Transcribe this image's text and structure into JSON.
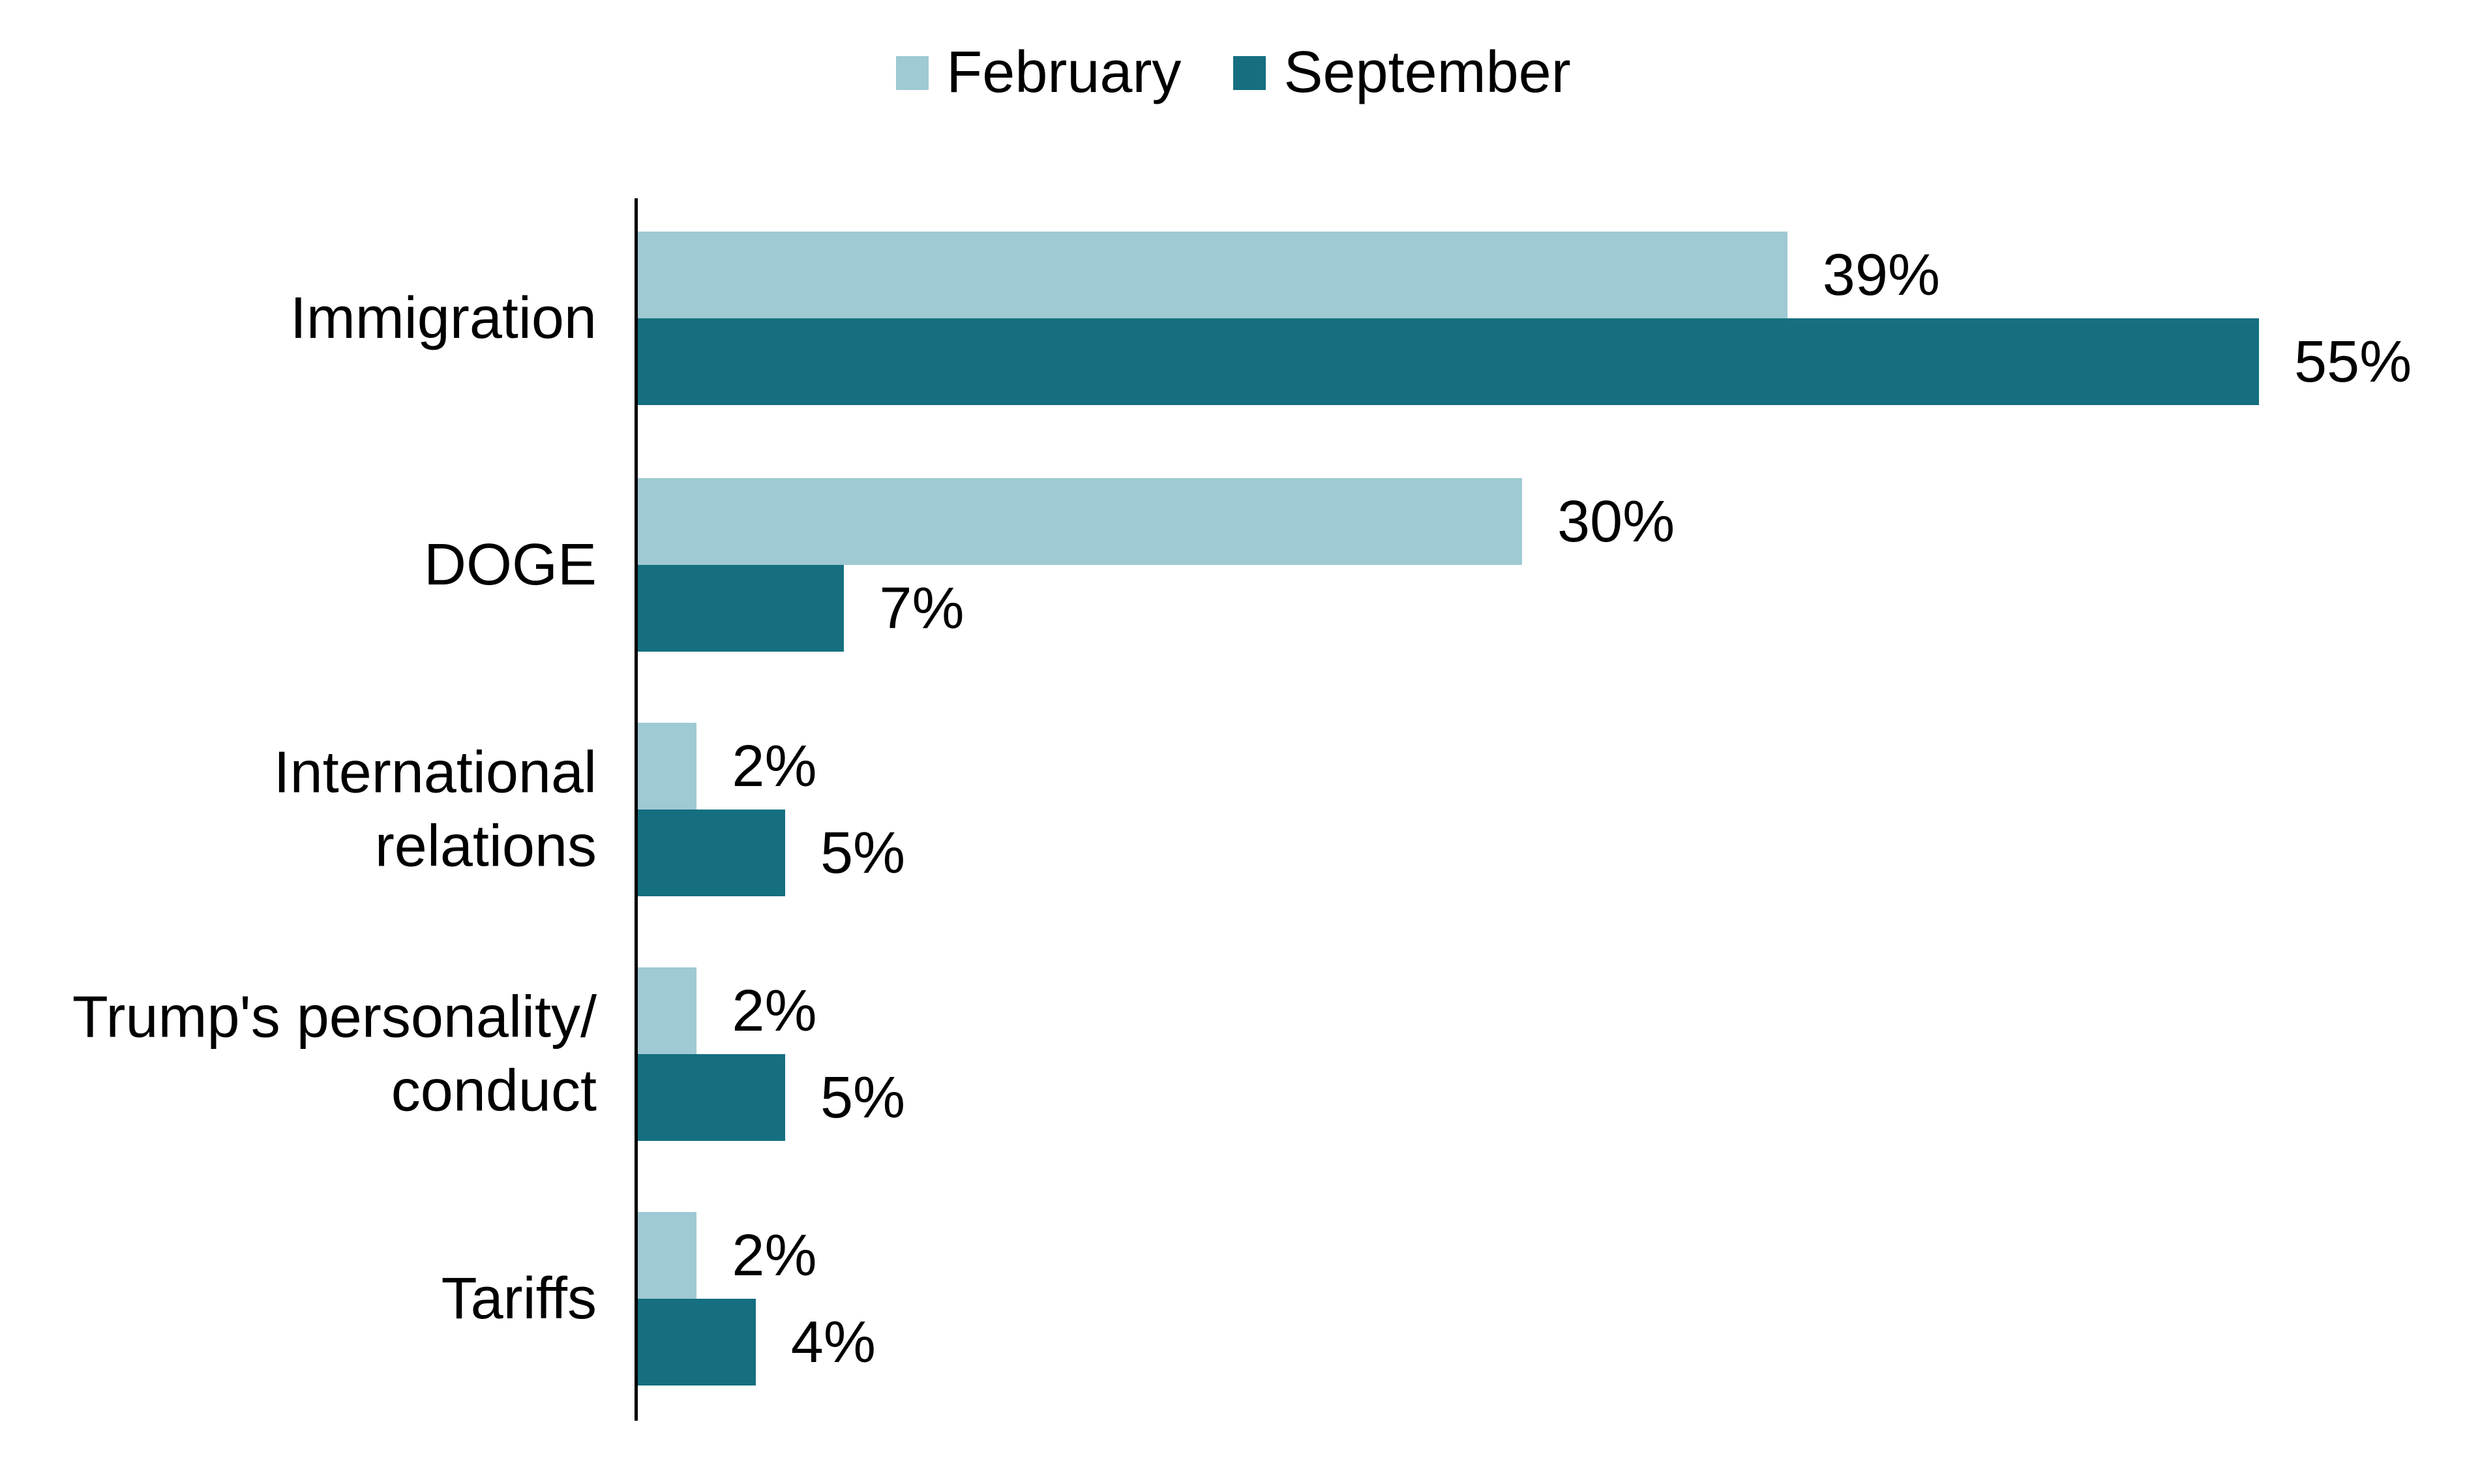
{
  "chart_data": {
    "type": "bar",
    "orientation": "horizontal",
    "title": "",
    "xlabel": "",
    "ylabel": "",
    "xlim": [
      0,
      60
    ],
    "grid": false,
    "legend_position": "top-center",
    "categories": [
      "Immigration",
      "DOGE",
      "International relations",
      "Trump's personality/conduct",
      "Tariffs"
    ],
    "series": [
      {
        "name": "February",
        "color": "#9fc9d3",
        "values": [
          39,
          30,
          2,
          2,
          2
        ],
        "labels": [
          "39%",
          "30%",
          "2%",
          "2%",
          "2%"
        ]
      },
      {
        "name": "September",
        "color": "#156f80",
        "values": [
          55,
          7,
          5,
          5,
          4
        ],
        "labels": [
          "55%",
          "7%",
          "5%",
          "5%",
          "4%"
        ]
      }
    ]
  },
  "category_label_lines": [
    [
      "Immigration"
    ],
    [
      "DOGE"
    ],
    [
      "International",
      "relations"
    ],
    [
      "Trump's personality/",
      "conduct"
    ],
    [
      "Tariffs"
    ]
  ],
  "colors": {
    "axis": "#000000",
    "text": "#000000",
    "background": "#ffffff"
  }
}
